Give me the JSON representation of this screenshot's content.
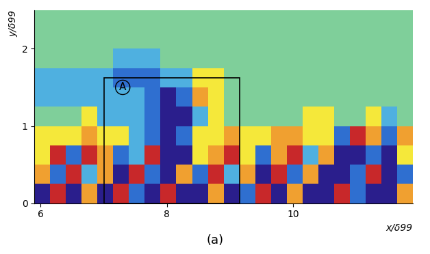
{
  "chart_data": {
    "type": "heatmap",
    "xlabel": "x/δ99",
    "ylabel": "y/δ99",
    "caption": "(a)",
    "xlim": [
      5.9,
      11.9
    ],
    "ylim": [
      0,
      2.5
    ],
    "xticks": [
      6,
      8,
      10
    ],
    "yticks": [
      0,
      1,
      2
    ],
    "x_edges": [
      5.9,
      6.15,
      6.4,
      6.65,
      6.9,
      7.15,
      7.4,
      7.65,
      7.9,
      8.15,
      8.4,
      8.65,
      8.9,
      9.15,
      9.4,
      9.65,
      9.9,
      10.15,
      10.4,
      10.65,
      10.9,
      11.15,
      11.4,
      11.65,
      11.9
    ],
    "y_edges": [
      0,
      0.25,
      0.5,
      0.75,
      1.0,
      1.25,
      1.5,
      1.75,
      2.0,
      2.25,
      2.5
    ],
    "cells": [
      [
        -3,
        3,
        -3,
        2,
        -3,
        3,
        -2,
        -3,
        3,
        -3,
        -3,
        2,
        -3,
        -2,
        3,
        -3,
        2,
        -3,
        -3,
        3,
        -2,
        -3,
        -3,
        2
      ],
      [
        2,
        -2,
        3,
        -1,
        2,
        -3,
        3,
        -2,
        -3,
        2,
        -2,
        3,
        -1,
        2,
        -3,
        3,
        -2,
        2,
        -3,
        -3,
        -2,
        3,
        -3,
        -2
      ],
      [
        1,
        3,
        -2,
        3,
        2,
        -2,
        -1,
        3,
        -3,
        -3,
        1,
        2,
        3,
        1,
        -2,
        2,
        3,
        -1,
        2,
        -3,
        -3,
        -2,
        -3,
        1
      ],
      [
        1,
        1,
        1,
        2,
        1,
        1,
        -1,
        -2,
        -3,
        -2,
        1,
        1,
        2,
        1,
        1,
        2,
        2,
        1,
        1,
        -2,
        3,
        2,
        -2,
        2
      ],
      [
        0,
        0,
        0,
        1,
        -1,
        -1,
        -1,
        -2,
        -3,
        -3,
        -1,
        1,
        0,
        0,
        0,
        0,
        0,
        1,
        1,
        0,
        0,
        1,
        -1,
        0
      ],
      [
        -1,
        -1,
        -1,
        -1,
        -1,
        -1,
        -1,
        -2,
        -3,
        -2,
        2,
        1,
        0,
        0,
        0,
        0,
        0,
        0,
        0,
        0,
        0,
        0,
        0,
        0
      ],
      [
        -1,
        -1,
        -1,
        -1,
        -1,
        -2,
        -2,
        -2,
        -1,
        -1,
        1,
        1,
        0,
        0,
        0,
        0,
        0,
        0,
        0,
        0,
        0,
        0,
        0,
        0
      ],
      [
        0,
        0,
        0,
        0,
        0,
        -1,
        -1,
        -1,
        0,
        0,
        0,
        0,
        0,
        0,
        0,
        0,
        0,
        0,
        0,
        0,
        0,
        0,
        0,
        0
      ],
      [
        0,
        0,
        0,
        0,
        0,
        0,
        0,
        0,
        0,
        0,
        0,
        0,
        0,
        0,
        0,
        0,
        0,
        0,
        0,
        0,
        0,
        0,
        0,
        0
      ],
      [
        0,
        0,
        0,
        0,
        0,
        0,
        0,
        0,
        0,
        0,
        0,
        0,
        0,
        0,
        0,
        0,
        0,
        0,
        0,
        0,
        0,
        0,
        0,
        0
      ]
    ],
    "regions": [
      {
        "label": "A",
        "x": [
          7.0,
          9.15
        ],
        "y": [
          0.0,
          1.62
        ]
      }
    ]
  }
}
